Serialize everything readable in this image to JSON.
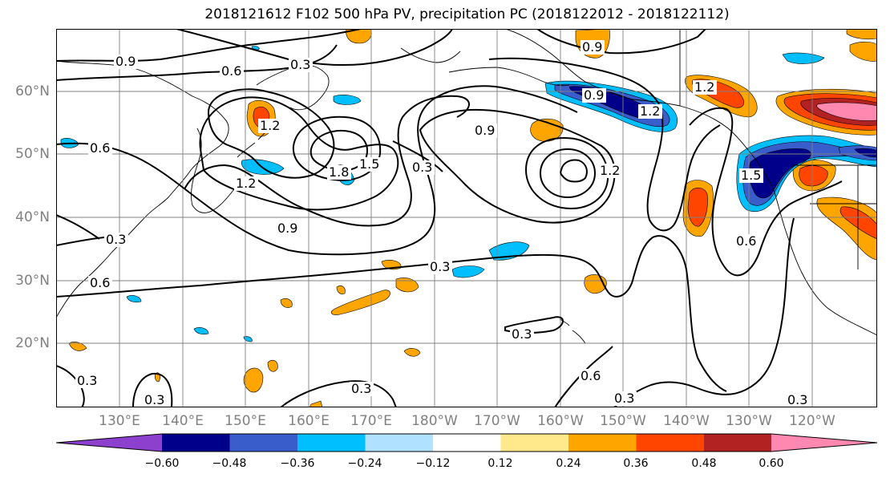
{
  "title": "2018121612 F102 500 hPa PV, precipitation PC (2018122012 - 2018122112)",
  "lat_labels": [
    "60°N",
    "50°N",
    "40°N",
    "30°N",
    "20°N"
  ],
  "lon_labels": [
    "130°E",
    "140°E",
    "150°E",
    "160°E",
    "170°E",
    "180°W",
    "170°W",
    "160°W",
    "150°W",
    "140°W",
    "130°W",
    "120°W"
  ],
  "contour_labels": [
    "0.9",
    "0.6",
    "0.3",
    "0.9",
    "0.6",
    "1.2",
    "1.5",
    "1.8",
    "1.2",
    "0.9",
    "0.3",
    "0.9",
    "1.2",
    "0.9",
    "1.2",
    "1.5",
    "1.2",
    "0.3",
    "0.6",
    "0.3",
    "0.3",
    "0.3",
    "0.6",
    "0.3",
    "0.3",
    "0.6",
    "0.3",
    "0.3"
  ],
  "colorbar": {
    "ticks": [
      "−0.60",
      "−0.48",
      "−0.36",
      "−0.24",
      "−0.12",
      "0.12",
      "0.24",
      "0.36",
      "0.48",
      "0.60"
    ],
    "colors": [
      "#8d3fce",
      "#00008b",
      "#3a5dcc",
      "#00bfff",
      "#b0e2ff",
      "#ffffff",
      "#ffe98a",
      "#ffa500",
      "#ff4500",
      "#b22222",
      "#ff88b0"
    ]
  }
}
